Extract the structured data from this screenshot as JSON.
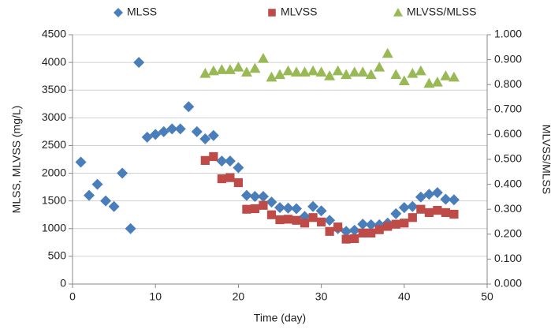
{
  "chart_data": {
    "type": "scatter",
    "x_label": "Time (day)",
    "y_label": "MLSS, MLVSS (mg/L)",
    "y2_label": "MLVSS/MLSS",
    "xlim": [
      0,
      50
    ],
    "xticks": [
      0,
      10,
      20,
      30,
      40,
      50
    ],
    "ylim": [
      0,
      4500
    ],
    "yticks": [
      0,
      500,
      1000,
      1500,
      2000,
      2500,
      3000,
      3500,
      4000,
      4500
    ],
    "y2lim": [
      0,
      1
    ],
    "y2ticks": [
      {
        "value": 0,
        "label": "0.000"
      },
      {
        "value": 0.1,
        "label": "0.100"
      },
      {
        "value": 0.2,
        "label": "0.200"
      },
      {
        "value": 0.3,
        "label": "0.300"
      },
      {
        "value": 0.4,
        "label": "0.400"
      },
      {
        "value": 0.5,
        "label": "0.500"
      },
      {
        "value": 0.6,
        "label": "0.600"
      },
      {
        "value": 0.7,
        "label": "0.700"
      },
      {
        "value": 0.8,
        "label": "0.800"
      },
      {
        "value": 0.9,
        "label": "0.900"
      },
      {
        "value": 1,
        "label": "1.000"
      }
    ],
    "grid": true,
    "legend": "top",
    "series": [
      {
        "name": "MLSS",
        "color": "#4a7ebb",
        "marker": "diamond",
        "x": [
          1,
          2,
          3,
          4,
          5,
          6,
          7,
          8,
          9,
          10,
          11,
          12,
          13,
          14,
          15,
          16,
          17,
          18,
          19,
          20,
          21,
          22,
          23,
          24,
          25,
          26,
          27,
          28,
          29,
          30,
          31,
          32,
          33,
          34,
          35,
          36,
          37,
          38,
          39,
          40,
          41,
          42,
          43,
          44,
          45,
          46
        ],
        "values": [
          2200,
          1600,
          1800,
          1500,
          1400,
          2000,
          1000,
          4000,
          2650,
          2700,
          2750,
          2800,
          2800,
          3200,
          2750,
          2620,
          2680,
          2220,
          2220,
          2100,
          1600,
          1580,
          1580,
          1480,
          1380,
          1370,
          1360,
          1220,
          1400,
          1320,
          1150,
          1000,
          950,
          970,
          1080,
          1070,
          1070,
          1100,
          1270,
          1380,
          1400,
          1570,
          1620,
          1650,
          1530,
          1520
        ]
      },
      {
        "name": "MLVSS",
        "color": "#be4b48",
        "marker": "square",
        "x": [
          16,
          17,
          18,
          19,
          20,
          21,
          22,
          23,
          24,
          25,
          26,
          27,
          28,
          29,
          30,
          31,
          32,
          33,
          34,
          35,
          36,
          37,
          38,
          39,
          40,
          41,
          42,
          43,
          44,
          45,
          46
        ],
        "values": [
          2230,
          2300,
          1900,
          1920,
          1830,
          1350,
          1360,
          1420,
          1250,
          1160,
          1170,
          1150,
          1100,
          1200,
          1120,
          950,
          1030,
          810,
          820,
          920,
          920,
          980,
          1040,
          1080,
          1100,
          1200,
          1350,
          1290,
          1330,
          1290,
          1260
        ]
      },
      {
        "name": "MLVSS/MLSS",
        "color": "#98b954",
        "marker": "triangle",
        "axis": "y2",
        "x": [
          16,
          17,
          18,
          19,
          20,
          21,
          22,
          23,
          24,
          25,
          26,
          27,
          28,
          29,
          30,
          31,
          32,
          33,
          34,
          35,
          36,
          37,
          38,
          39,
          40,
          41,
          42,
          43,
          44,
          45,
          46
        ],
        "values": [
          0.845,
          0.855,
          0.86,
          0.86,
          0.87,
          0.85,
          0.865,
          0.905,
          0.83,
          0.84,
          0.855,
          0.85,
          0.85,
          0.855,
          0.85,
          0.835,
          0.855,
          0.84,
          0.85,
          0.85,
          0.84,
          0.87,
          0.925,
          0.84,
          0.815,
          0.845,
          0.855,
          0.805,
          0.81,
          0.835,
          0.83
        ]
      }
    ]
  }
}
